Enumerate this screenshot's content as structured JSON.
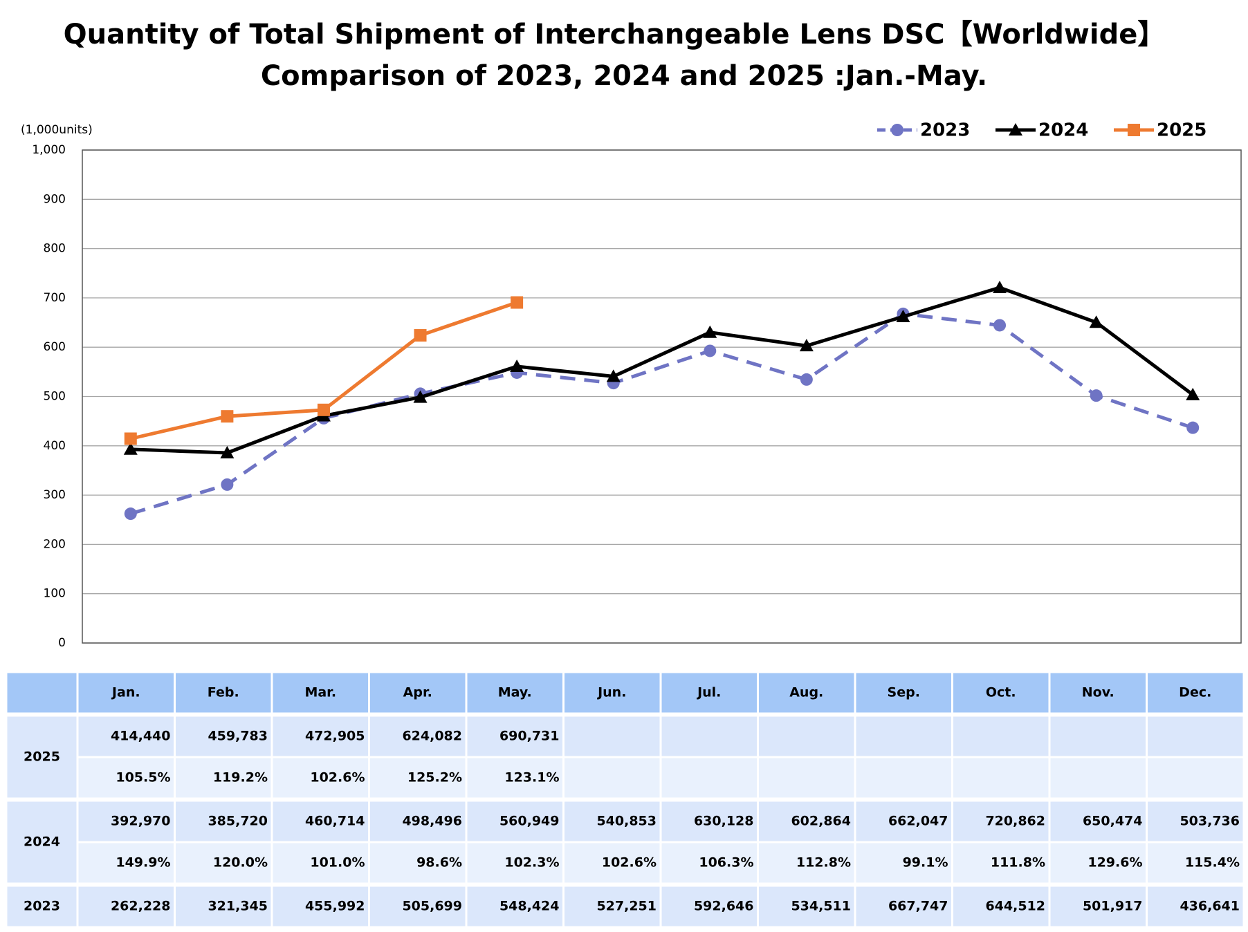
{
  "chart_data": {
    "type": "line",
    "title": "Quantity of Total Shipment of Interchangeable Lens DSC【Worldwide】",
    "subtitle": "Comparison of 2023, 2024 and 2025 :Jan.-May.",
    "ylabel": "(1,000units)",
    "categories": [
      "Jan.",
      "Feb.",
      "Mar.",
      "Apr.",
      "May.",
      "Jun.",
      "Jul.",
      "Aug.",
      "Sep.",
      "Oct.",
      "Nov.",
      "Dec."
    ],
    "ylim": [
      0,
      1000
    ],
    "yticks": [
      0,
      100,
      200,
      300,
      400,
      500,
      600,
      700,
      800,
      900,
      {
        "value": 1000,
        "label": "1,000"
      }
    ],
    "grid": true,
    "legend": "top-right",
    "series": [
      {
        "name": "2023",
        "color": "#6f74c4",
        "marker": "circle",
        "dashed": true,
        "values": [
          262.228,
          321.345,
          455.992,
          505.699,
          548.424,
          527.251,
          592.646,
          534.511,
          667.747,
          644.512,
          501.917,
          436.641
        ],
        "value_labels": [
          "262,228",
          "321,345",
          "455,992",
          "505,699",
          "548,424",
          "527,251",
          "592,646",
          "534,511",
          "667,747",
          "644,512",
          "501,917",
          "436,641"
        ]
      },
      {
        "name": "2024",
        "color": "#000000",
        "marker": "triangle",
        "dashed": false,
        "values": [
          392.97,
          385.72,
          460.714,
          498.496,
          560.949,
          540.853,
          630.128,
          602.864,
          662.047,
          720.862,
          650.474,
          503.736
        ],
        "value_labels": [
          "392,970",
          "385,720",
          "460,714",
          "498,496",
          "560,949",
          "540,853",
          "630,128",
          "602,864",
          "662,047",
          "720,862",
          "650,474",
          "503,736"
        ],
        "ratios": [
          "149.9%",
          "120.0%",
          "101.0%",
          "98.6%",
          "102.3%",
          "102.6%",
          "106.3%",
          "112.8%",
          "99.1%",
          "111.8%",
          "129.6%",
          "115.4%"
        ]
      },
      {
        "name": "2025",
        "color": "#ee7a30",
        "marker": "square",
        "dashed": false,
        "values": [
          414.44,
          459.783,
          472.905,
          624.082,
          690.731,
          null,
          null,
          null,
          null,
          null,
          null,
          null
        ],
        "value_labels": [
          "414,440",
          "459,783",
          "472,905",
          "624,082",
          "690,731",
          null,
          null,
          null,
          null,
          null,
          null,
          null
        ],
        "ratios": [
          "105.5%",
          "119.2%",
          "102.6%",
          "125.2%",
          "123.1%",
          null,
          null,
          null,
          null,
          null,
          null,
          null
        ]
      }
    ]
  }
}
